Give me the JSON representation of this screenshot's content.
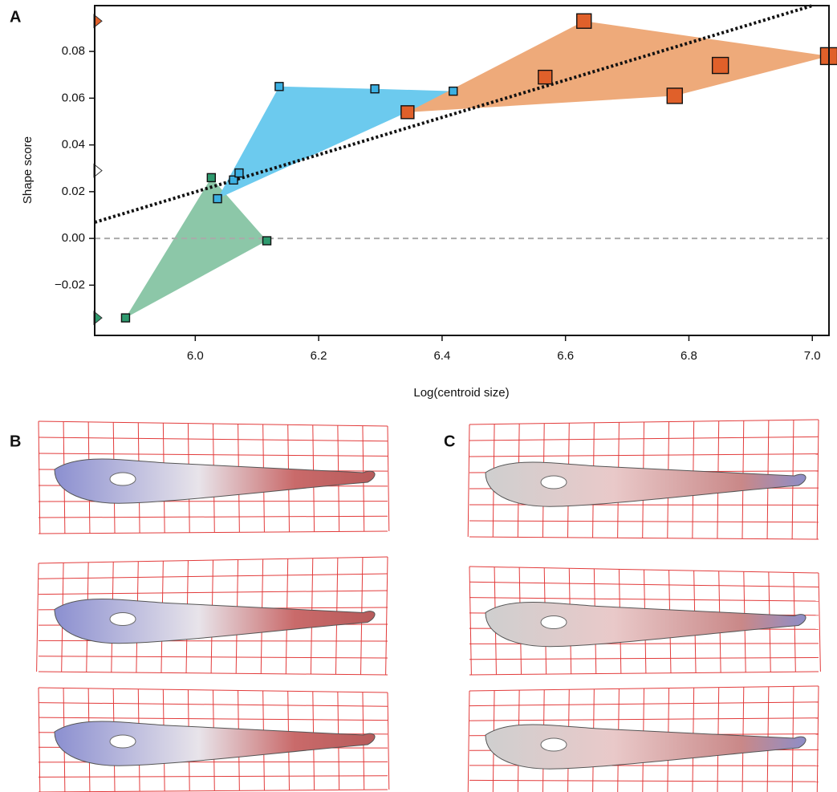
{
  "panel_labels": {
    "a": "A",
    "b": "B",
    "c": "C"
  },
  "chart_data": {
    "type": "scatter",
    "x_label": "Log(centroid size)",
    "y_label": "Shape score",
    "xlim": [
      5.837,
      7.027
    ],
    "ylim": [
      -0.0415,
      0.0996
    ],
    "xticks": [
      {
        "value": 6,
        "label": "6.0"
      },
      6.2,
      6.4,
      6.6,
      6.8,
      {
        "value": 7,
        "label": "7.0"
      }
    ],
    "yticks": [
      {
        "value": -0.02,
        "label": "−0.02"
      },
      {
        "value": 0,
        "label": "0.00"
      },
      {
        "value": 0.02,
        "label": "0.02"
      },
      {
        "value": 0.04,
        "label": "0.04"
      },
      {
        "value": 0.06,
        "label": "0.06"
      },
      {
        "value": 0.08,
        "label": "0.08"
      }
    ],
    "zero_line": true,
    "series": [
      {
        "color": "#2e9a6e",
        "hull_color": "#8cc7a8",
        "x": [
          5.887,
          6.026,
          6.116
        ],
        "values": [
          -0.034,
          0.026,
          -0.001
        ]
      },
      {
        "color": "#3cb0e2",
        "hull_color": "#6ccaee",
        "x": [
          6.036,
          6.062,
          6.071,
          6.136,
          6.291,
          6.418
        ],
        "values": [
          0.017,
          0.025,
          0.028,
          0.065,
          0.064,
          0.063
        ]
      },
      {
        "color": "#e0602a",
        "hull_color": "#eeaa7a",
        "x": [
          6.344,
          6.567,
          6.63,
          6.777,
          6.851,
          7.027
        ],
        "values": [
          0.054,
          0.069,
          0.093,
          0.061,
          0.074,
          0.078
        ]
      }
    ],
    "trend_line": {
      "x": [
        5.837,
        7.0
      ],
      "y": [
        0.0069,
        0.0996
      ]
    },
    "axis_markers": [
      {
        "color": "#e0602a",
        "value": 0.093
      },
      {
        "color": "#ffffff",
        "value": 0.029
      },
      {
        "color": "#2e9a6e",
        "value": -0.034
      }
    ]
  }
}
